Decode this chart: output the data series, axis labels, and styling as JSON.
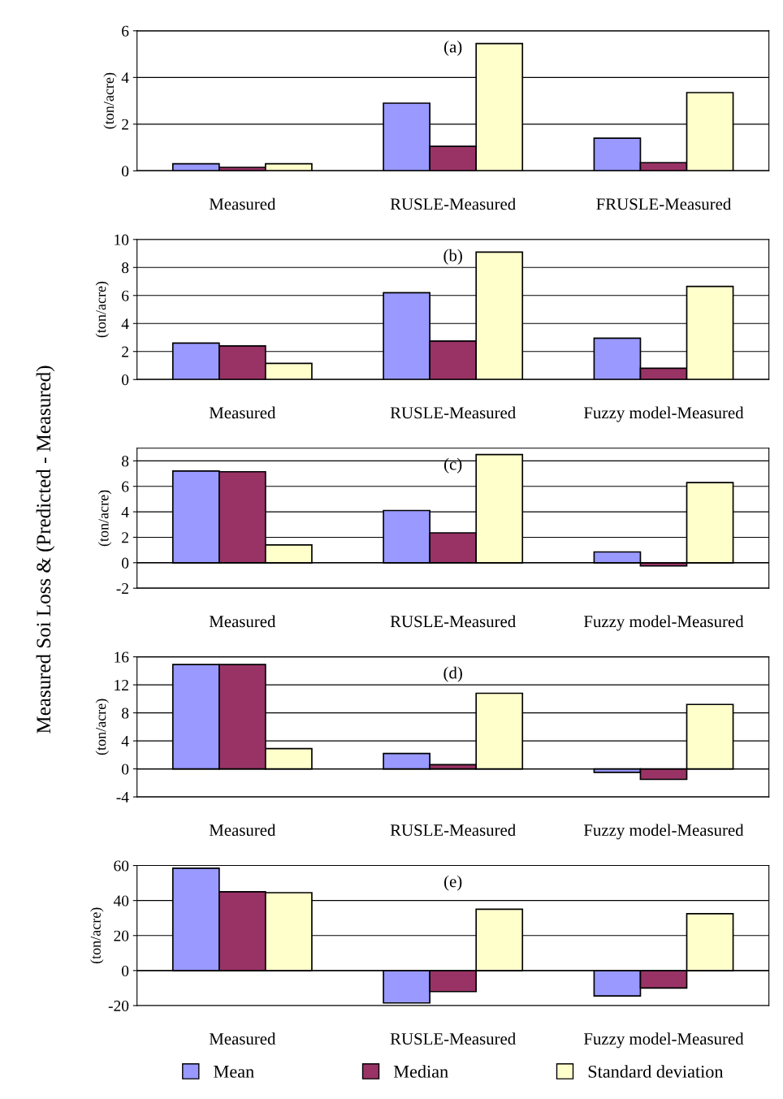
{
  "chart_data": [
    {
      "type": "bar",
      "ylabel": "(ton/acre)",
      "annotations": [
        "(a)",
        "Measured Soi Loss & (Predicted - Measured)"
      ],
      "categories": [
        "Measured",
        "RUSLE-Measured",
        "FRUSLE-Measured"
      ],
      "ylim": [
        0,
        6
      ],
      "yticks": [
        0,
        2,
        4,
        6
      ],
      "grid": "y",
      "series": [
        {
          "color": "#9999ff",
          "values": [
            0.3,
            2.9,
            1.4
          ]
        },
        {
          "color": "#993366",
          "values": [
            0.15,
            1.05,
            0.35
          ]
        },
        {
          "color": "#ffffcc",
          "values": [
            0.3,
            5.45,
            3.35
          ]
        }
      ]
    },
    {
      "type": "bar",
      "ylabel": "(ton/acre)",
      "annotations": [
        "(b)"
      ],
      "categories": [
        "Measured",
        "RUSLE-Measured",
        "Fuzzy model-Measured"
      ],
      "ylim": [
        0,
        10
      ],
      "yticks": [
        0,
        2,
        4,
        6,
        8,
        10
      ],
      "grid": "y",
      "series": [
        {
          "color": "#9999ff",
          "values": [
            2.6,
            6.2,
            2.95
          ]
        },
        {
          "color": "#993366",
          "values": [
            2.4,
            2.75,
            0.8
          ]
        },
        {
          "color": "#ffffcc",
          "values": [
            1.15,
            9.1,
            6.65
          ]
        }
      ]
    },
    {
      "type": "bar",
      "ylabel": "(ton/acre)",
      "annotations": [
        "(c)"
      ],
      "categories": [
        "Measured",
        "RUSLE-Measured",
        "Fuzzy model-Measured"
      ],
      "ylim": [
        -2,
        9
      ],
      "yticks": [
        -2,
        0,
        2,
        4,
        6,
        8
      ],
      "grid": "y",
      "series": [
        {
          "color": "#9999ff",
          "values": [
            7.2,
            4.1,
            0.85
          ]
        },
        {
          "color": "#993366",
          "values": [
            7.15,
            2.35,
            -0.25
          ]
        },
        {
          "color": "#ffffcc",
          "values": [
            1.4,
            8.5,
            6.3
          ]
        }
      ]
    },
    {
      "type": "bar",
      "ylabel": "(ton/acre)",
      "annotations": [
        "(d)"
      ],
      "categories": [
        "Measured",
        "RUSLE-Measured",
        "Fuzzy model-Measured"
      ],
      "ylim": [
        -4,
        16
      ],
      "yticks": [
        -4,
        0,
        4,
        8,
        12,
        16
      ],
      "grid": "y",
      "series": [
        {
          "color": "#9999ff",
          "values": [
            14.9,
            2.2,
            -0.5
          ]
        },
        {
          "color": "#993366",
          "values": [
            14.9,
            0.6,
            -1.5
          ]
        },
        {
          "color": "#ffffcc",
          "values": [
            2.9,
            10.8,
            9.2
          ]
        }
      ]
    },
    {
      "type": "bar",
      "ylabel": "(ton/acre)",
      "annotations": [
        "(e)"
      ],
      "categories": [
        "Measured",
        "RUSLE-Measured",
        "Fuzzy model-Measured"
      ],
      "ylim": [
        -20,
        60
      ],
      "yticks": [
        -20,
        0,
        20,
        40,
        60
      ],
      "grid": "y",
      "legend": "bottom",
      "series": [
        {
          "name": "Mean",
          "color": "#9999ff",
          "values": [
            58.5,
            -18.5,
            -14.5
          ]
        },
        {
          "name": "Median",
          "color": "#993366",
          "values": [
            45,
            -12,
            -10
          ]
        },
        {
          "name": "Standard deviation",
          "color": "#ffffcc",
          "values": [
            44.5,
            35,
            32.5
          ]
        }
      ]
    }
  ]
}
